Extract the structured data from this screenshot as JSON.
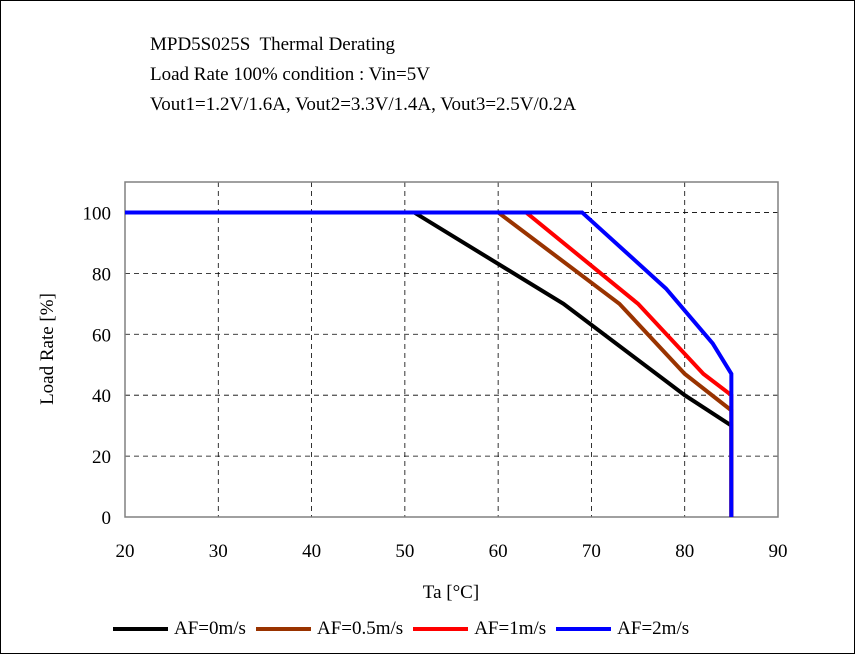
{
  "title_lines": [
    "MPD5S025S  Thermal Derating",
    "Load Rate 100% condition : Vin=5V",
    "Vout1=1.2V/1.6A, Vout2=3.3V/1.4A, Vout3=2.5V/0.2A"
  ],
  "chart_data": {
    "type": "line",
    "title": "MPD5S025S  Thermal Derating",
    "xlabel": "Ta [°C]",
    "ylabel": "Load Rate [%]",
    "xlim": [
      20,
      90
    ],
    "ylim": [
      0,
      110
    ],
    "xticks": [
      20,
      30,
      40,
      50,
      60,
      70,
      80,
      90
    ],
    "yticks": [
      0,
      20,
      40,
      60,
      80,
      100
    ],
    "grid": true,
    "legend_position": "bottom",
    "series": [
      {
        "name": "AF=0m/s",
        "color": "#000000",
        "x": [
          20,
          51,
          67,
          80,
          85,
          85
        ],
        "y": [
          100,
          100,
          70,
          40,
          30,
          0
        ]
      },
      {
        "name": "AF=0.5m/s",
        "color": "#993300",
        "x": [
          20,
          60,
          73,
          80,
          85,
          85
        ],
        "y": [
          100,
          100,
          70,
          47,
          35,
          0
        ]
      },
      {
        "name": "AF=1m/s",
        "color": "#ff0000",
        "x": [
          20,
          63,
          75,
          82,
          85,
          85
        ],
        "y": [
          100,
          100,
          70,
          47,
          40,
          0
        ]
      },
      {
        "name": "AF=2m/s",
        "color": "#0000ff",
        "x": [
          20,
          69,
          78,
          83,
          85,
          85
        ],
        "y": [
          100,
          100,
          75,
          57,
          47,
          0
        ]
      }
    ]
  }
}
